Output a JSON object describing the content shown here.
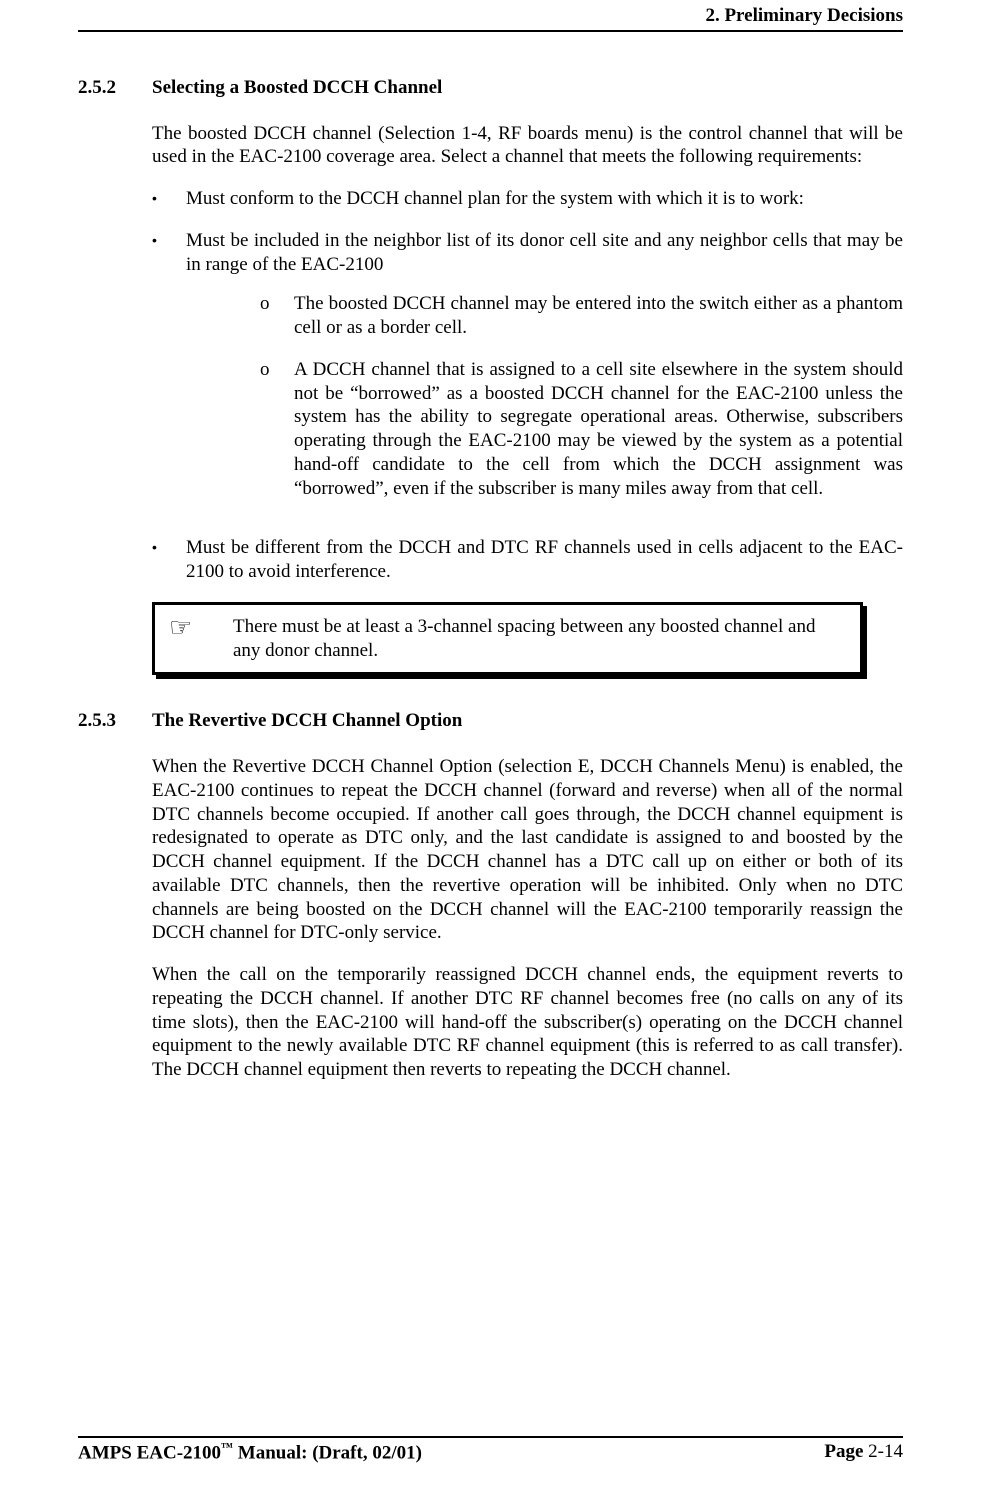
{
  "header": {
    "chapter": "2. Preliminary Decisions"
  },
  "sections": [
    {
      "number": "2.5.2",
      "title": "Selecting a Boosted DCCH Channel",
      "intro": "The boosted DCCH channel (Selection 1-4, RF boards menu) is the control channel that will be used in the EAC-2100 coverage area.  Select a channel that meets the following requirements:",
      "bullets": [
        {
          "text": "Must conform to the DCCH channel plan for the system with which it is to work:",
          "sub": []
        },
        {
          "text": "Must be included in the neighbor list of its donor cell site and any neighbor cells that may be in range of the EAC-2100",
          "sub": [
            "The boosted DCCH channel may be entered into the switch either as a phantom cell or as a border cell.",
            "A DCCH channel that is assigned to a cell site elsewhere in the system should not be “borrowed” as a boosted DCCH channel for the EAC-2100 unless the system has the ability to segregate operational areas.  Otherwise, subscribers operating through the EAC-2100 may be viewed by the system as a potential hand-off candidate to the cell from which the DCCH assignment was “borrowed”, even if the subscriber is many miles away from that cell."
          ]
        },
        {
          "text": "Must be different from the DCCH and DTC RF channels used in cells adjacent to the EAC-2100 to avoid interference.",
          "sub": []
        }
      ],
      "note": "There must be at least a 3-channel spacing between any boosted channel and any donor channel."
    },
    {
      "number": "2.5.3",
      "title": "The Revertive DCCH Channel Option",
      "paragraphs": [
        "When the Revertive DCCH Channel Option (selection E, DCCH Channels Menu) is enabled, the EAC-2100 continues to repeat the DCCH channel (forward and reverse) when all of the normal DTC channels become occupied.  If another call goes through, the DCCH channel equipment is redesignated to operate as DTC only, and the last candidate is assigned to and boosted by the DCCH channel equipment.  If the DCCH channel has a DTC call up on either or both of its available DTC channels, then the revertive operation will be inhibited.  Only when no DTC channels are being boosted on the DCCH channel will the EAC-2100 temporarily reassign the DCCH channel for DTC-only service.",
        "When the call on the temporarily reassigned DCCH channel ends, the equipment reverts to repeating the DCCH channel. If another DTC RF channel becomes free (no calls on any of its time slots), then the EAC-2100 will hand-off the subscriber(s) operating on the DCCH channel equipment to the newly available DTC RF channel equipment (this is referred to as call transfer). The DCCH channel equipment then reverts to repeating the DCCH channel."
      ]
    }
  ],
  "footer": {
    "manual_prefix": "AMPS EAC-2100",
    "tm": "™",
    "manual_suffix": " Manual: (Draft, 02/01)",
    "page_label": "Page ",
    "page_number": "2-14"
  },
  "glyphs": {
    "bullet": "•",
    "submark": "o",
    "pointer": "☞"
  }
}
